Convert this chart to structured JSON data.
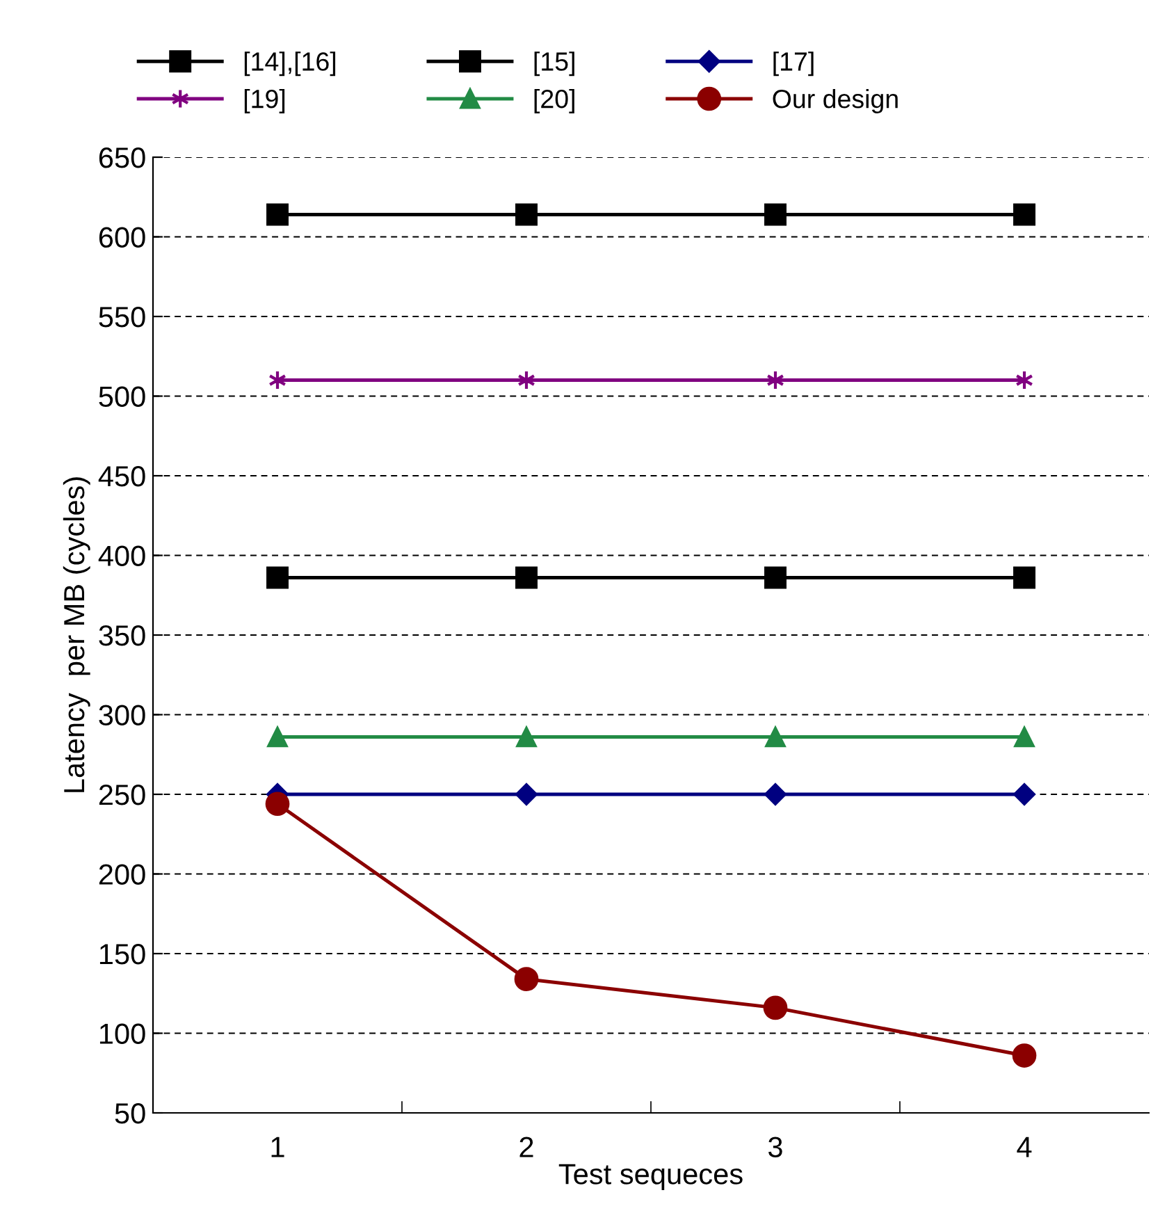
{
  "chart_data": {
    "type": "line",
    "xlabel": "Test sequeces",
    "ylabel": "Latency  per MB (cycles)",
    "categories": [
      "1",
      "2",
      "3",
      "4"
    ],
    "series": [
      {
        "name": "[14],[16]",
        "color": "#000000",
        "marker": "square",
        "values": [
          614,
          614,
          614,
          614
        ]
      },
      {
        "name": "[15]",
        "color": "#000000",
        "marker": "square",
        "values": [
          386,
          386,
          386,
          386
        ]
      },
      {
        "name": "[17]",
        "color": "#000080",
        "marker": "diamond",
        "values": [
          250,
          250,
          250,
          250
        ]
      },
      {
        "name": "[19]",
        "color": "#800080",
        "marker": "cross",
        "values": [
          510,
          510,
          510,
          510
        ]
      },
      {
        "name": "[20]",
        "color": "#228b45",
        "marker": "triangle",
        "values": [
          286,
          286,
          286,
          286
        ]
      },
      {
        "name": "Our design",
        "color": "#8b0000",
        "marker": "circle",
        "values": [
          244,
          134,
          116,
          86
        ]
      }
    ],
    "ylim": [
      50,
      650
    ],
    "yticks": [
      50,
      100,
      150,
      200,
      250,
      300,
      350,
      400,
      450,
      500,
      550,
      600,
      650
    ],
    "grid": "y",
    "legend": "top",
    "line_style": "solid"
  }
}
